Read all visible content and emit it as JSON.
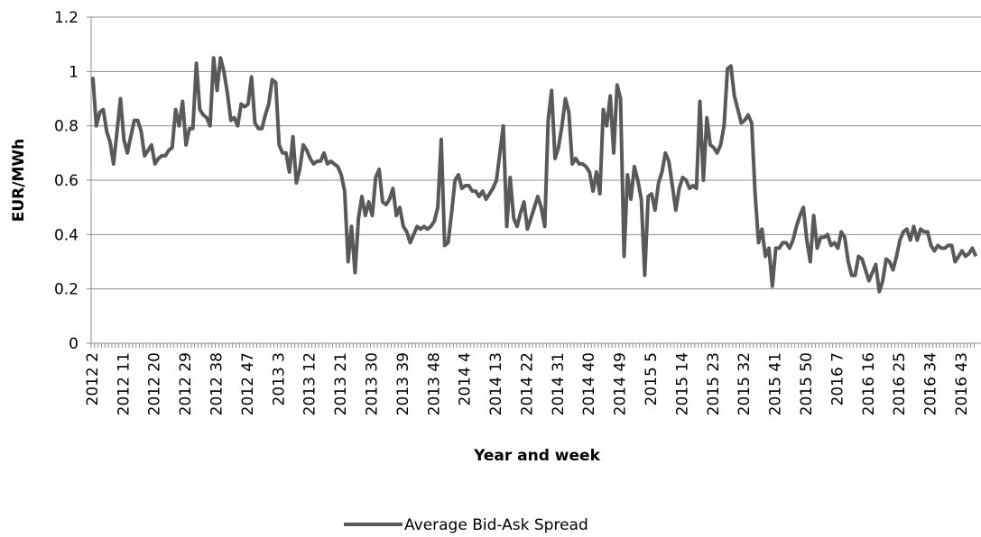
{
  "chart_data": {
    "type": "line",
    "y_label": "EUR/MWh",
    "x_label": "Year and week",
    "ylim": [
      0,
      1.2
    ],
    "yticks": [
      0,
      0.2,
      0.4,
      0.6,
      0.8,
      1,
      1.2
    ],
    "grid": true,
    "legend": "bottom",
    "categories": [
      "2012 2",
      null,
      null,
      null,
      null,
      null,
      null,
      null,
      null,
      "2012 11",
      null,
      null,
      null,
      null,
      null,
      null,
      null,
      null,
      "2012 20",
      null,
      null,
      null,
      null,
      null,
      null,
      null,
      null,
      "2012 29",
      null,
      null,
      null,
      null,
      null,
      null,
      null,
      null,
      "2012 38",
      null,
      null,
      null,
      null,
      null,
      null,
      null,
      null,
      "2012 47",
      null,
      null,
      null,
      null,
      null,
      null,
      null,
      null,
      "2013 3",
      null,
      null,
      null,
      null,
      null,
      null,
      null,
      null,
      "2013 12",
      null,
      null,
      null,
      null,
      null,
      null,
      null,
      null,
      "2013 21",
      null,
      null,
      null,
      null,
      null,
      null,
      null,
      null,
      "2013 30",
      null,
      null,
      null,
      null,
      null,
      null,
      null,
      null,
      "2013 39",
      null,
      null,
      null,
      null,
      null,
      null,
      null,
      null,
      "2013 48",
      null,
      null,
      null,
      null,
      null,
      null,
      null,
      null,
      "2014 4",
      null,
      null,
      null,
      null,
      null,
      null,
      null,
      null,
      "2014 13",
      null,
      null,
      null,
      null,
      null,
      null,
      null,
      null,
      "2014 22",
      null,
      null,
      null,
      null,
      null,
      null,
      null,
      null,
      "2014 31",
      null,
      null,
      null,
      null,
      null,
      null,
      null,
      null,
      "2014 40",
      null,
      null,
      null,
      null,
      null,
      null,
      null,
      null,
      "2014 49",
      null,
      null,
      null,
      null,
      null,
      null,
      null,
      null,
      "2015 5",
      null,
      null,
      null,
      null,
      null,
      null,
      null,
      null,
      "2015 14",
      null,
      null,
      null,
      null,
      null,
      null,
      null,
      null,
      "2015 23",
      null,
      null,
      null,
      null,
      null,
      null,
      null,
      null,
      "2015 32",
      null,
      null,
      null,
      null,
      null,
      null,
      null,
      null,
      "2015 41",
      null,
      null,
      null,
      null,
      null,
      null,
      null,
      null,
      "2015 50",
      null,
      null,
      null,
      null,
      null,
      null,
      null,
      null,
      "2016 7",
      null,
      null,
      null,
      null,
      null,
      null,
      null,
      null,
      "2016 16",
      null,
      null,
      null,
      null,
      null,
      null,
      null,
      null,
      "2016 25",
      null,
      null,
      null,
      null,
      null,
      null,
      null,
      null,
      "2016 34",
      null,
      null,
      null,
      null,
      null,
      null,
      null,
      null,
      "2016 43",
      null,
      null,
      null,
      null
    ],
    "series": [
      {
        "name": "Average Bid-Ask Spread",
        "color": "#595959",
        "values": [
          0.98,
          0.8,
          0.85,
          0.86,
          0.78,
          0.74,
          0.66,
          0.78,
          0.9,
          0.75,
          0.7,
          0.76,
          0.82,
          0.82,
          0.78,
          0.69,
          0.71,
          0.73,
          0.66,
          0.68,
          0.69,
          0.69,
          0.71,
          0.72,
          0.86,
          0.8,
          0.89,
          0.73,
          0.79,
          0.79,
          1.03,
          0.86,
          0.84,
          0.83,
          0.8,
          1.05,
          0.93,
          1.05,
          1.0,
          0.92,
          0.82,
          0.83,
          0.8,
          0.88,
          0.87,
          0.88,
          0.98,
          0.81,
          0.79,
          0.79,
          0.84,
          0.88,
          0.97,
          0.96,
          0.73,
          0.7,
          0.7,
          0.63,
          0.76,
          0.59,
          0.64,
          0.73,
          0.71,
          0.68,
          0.66,
          0.67,
          0.67,
          0.7,
          0.66,
          0.67,
          0.66,
          0.65,
          0.62,
          0.56,
          0.3,
          0.43,
          0.26,
          0.46,
          0.54,
          0.47,
          0.52,
          0.47,
          0.61,
          0.64,
          0.52,
          0.51,
          0.53,
          0.57,
          0.47,
          0.5,
          0.43,
          0.41,
          0.37,
          0.4,
          0.43,
          0.42,
          0.43,
          0.42,
          0.43,
          0.45,
          0.5,
          0.75,
          0.36,
          0.37,
          0.48,
          0.6,
          0.62,
          0.57,
          0.58,
          0.58,
          0.56,
          0.56,
          0.54,
          0.56,
          0.53,
          0.55,
          0.57,
          0.6,
          0.7,
          0.8,
          0.43,
          0.61,
          0.46,
          0.43,
          0.48,
          0.52,
          0.42,
          0.46,
          0.5,
          0.54,
          0.5,
          0.43,
          0.82,
          0.93,
          0.68,
          0.72,
          0.8,
          0.9,
          0.85,
          0.66,
          0.68,
          0.66,
          0.66,
          0.65,
          0.63,
          0.56,
          0.63,
          0.55,
          0.86,
          0.8,
          0.91,
          0.7,
          0.95,
          0.9,
          0.32,
          0.62,
          0.53,
          0.65,
          0.6,
          0.53,
          0.25,
          0.54,
          0.55,
          0.49,
          0.59,
          0.63,
          0.7,
          0.67,
          0.58,
          0.49,
          0.57,
          0.61,
          0.6,
          0.57,
          0.58,
          0.57,
          0.89,
          0.6,
          0.83,
          0.73,
          0.72,
          0.7,
          0.73,
          0.8,
          1.01,
          1.02,
          0.91,
          0.86,
          0.81,
          0.82,
          0.84,
          0.81,
          0.55,
          0.37,
          0.42,
          0.32,
          0.35,
          0.21,
          0.35,
          0.35,
          0.37,
          0.37,
          0.35,
          0.38,
          0.43,
          0.47,
          0.5,
          0.38,
          0.3,
          0.47,
          0.35,
          0.39,
          0.39,
          0.4,
          0.36,
          0.37,
          0.35,
          0.41,
          0.39,
          0.3,
          0.25,
          0.25,
          0.32,
          0.31,
          0.27,
          0.23,
          0.26,
          0.29,
          0.19,
          0.23,
          0.31,
          0.3,
          0.27,
          0.32,
          0.38,
          0.41,
          0.42,
          0.38,
          0.43,
          0.38,
          0.42,
          0.41,
          0.41,
          0.36,
          0.34,
          0.36,
          0.35,
          0.35,
          0.36,
          0.36,
          0.3,
          0.32,
          0.34,
          0.32,
          0.33,
          0.35,
          0.32
        ]
      }
    ]
  }
}
